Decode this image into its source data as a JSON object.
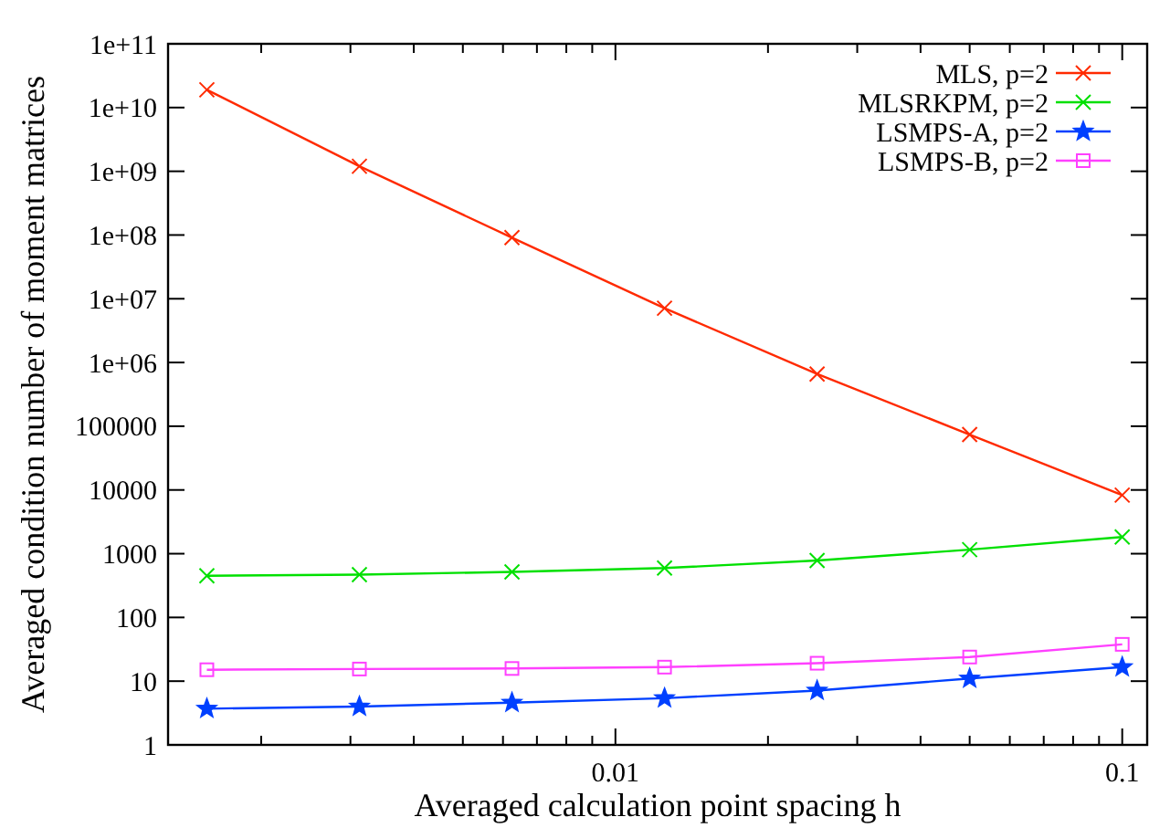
{
  "chart_data": {
    "type": "line",
    "xlabel": "Averaged calculation point spacing h",
    "ylabel": "Averaged condition number of moment matrices",
    "log": "xy",
    "legend": "top right",
    "grid": false,
    "x": [
      0.0015625,
      0.003125,
      0.00625,
      0.0125,
      0.025,
      0.05,
      0.1
    ],
    "xlim": [
      0.00131,
      0.112
    ],
    "xticks": [
      {
        "value": 0.002,
        "label": null
      },
      {
        "value": 0.003,
        "label": null
      },
      {
        "value": 0.004,
        "label": null
      },
      {
        "value": 0.005,
        "label": null
      },
      {
        "value": 0.006,
        "label": null
      },
      {
        "value": 0.007,
        "label": null
      },
      {
        "value": 0.008,
        "label": null
      },
      {
        "value": 0.009,
        "label": null
      },
      0.01,
      {
        "value": 0.02,
        "label": null
      },
      {
        "value": 0.03,
        "label": null
      },
      {
        "value": 0.04,
        "label": null
      },
      {
        "value": 0.05,
        "label": null
      },
      {
        "value": 0.06,
        "label": null
      },
      {
        "value": 0.07,
        "label": null
      },
      {
        "value": 0.08,
        "label": null
      },
      {
        "value": 0.09,
        "label": null
      },
      0.1
    ],
    "ylim": [
      1,
      100000000000
    ],
    "yticks": [
      1,
      10,
      100,
      1000,
      10000,
      100000,
      {
        "value": 1000000,
        "label": "1e+06"
      },
      {
        "value": 10000000,
        "label": "1e+07"
      },
      {
        "value": 100000000,
        "label": "1e+08"
      },
      {
        "value": 1000000000,
        "label": "1e+09"
      },
      {
        "value": 10000000000,
        "label": "1e+10"
      },
      {
        "value": 100000000000,
        "label": "1e+11"
      }
    ],
    "series": [
      {
        "name": "MLS, p=2",
        "color": "#ff2a00",
        "marker": "cross",
        "values": [
          19000000000,
          1200000000,
          91000000,
          7100000,
          660000,
          74000,
          8300
        ]
      },
      {
        "name": "MLSRKPM, p=2",
        "color": "#00e000",
        "marker": "cross",
        "values": [
          450,
          470,
          517,
          595,
          782,
          1158,
          1832
        ]
      },
      {
        "name": "LSMPS-A, p=2",
        "color": "#0040ff",
        "marker": "star",
        "values": [
          3.7,
          4.0,
          4.6,
          5.4,
          7.1,
          11,
          16.6
        ]
      },
      {
        "name": "LSMPS-B, p=2",
        "color": "#ff40ff",
        "marker": "square",
        "values": [
          15.1,
          15.5,
          15.8,
          16.6,
          19.1,
          23.9,
          37.8
        ]
      }
    ]
  }
}
